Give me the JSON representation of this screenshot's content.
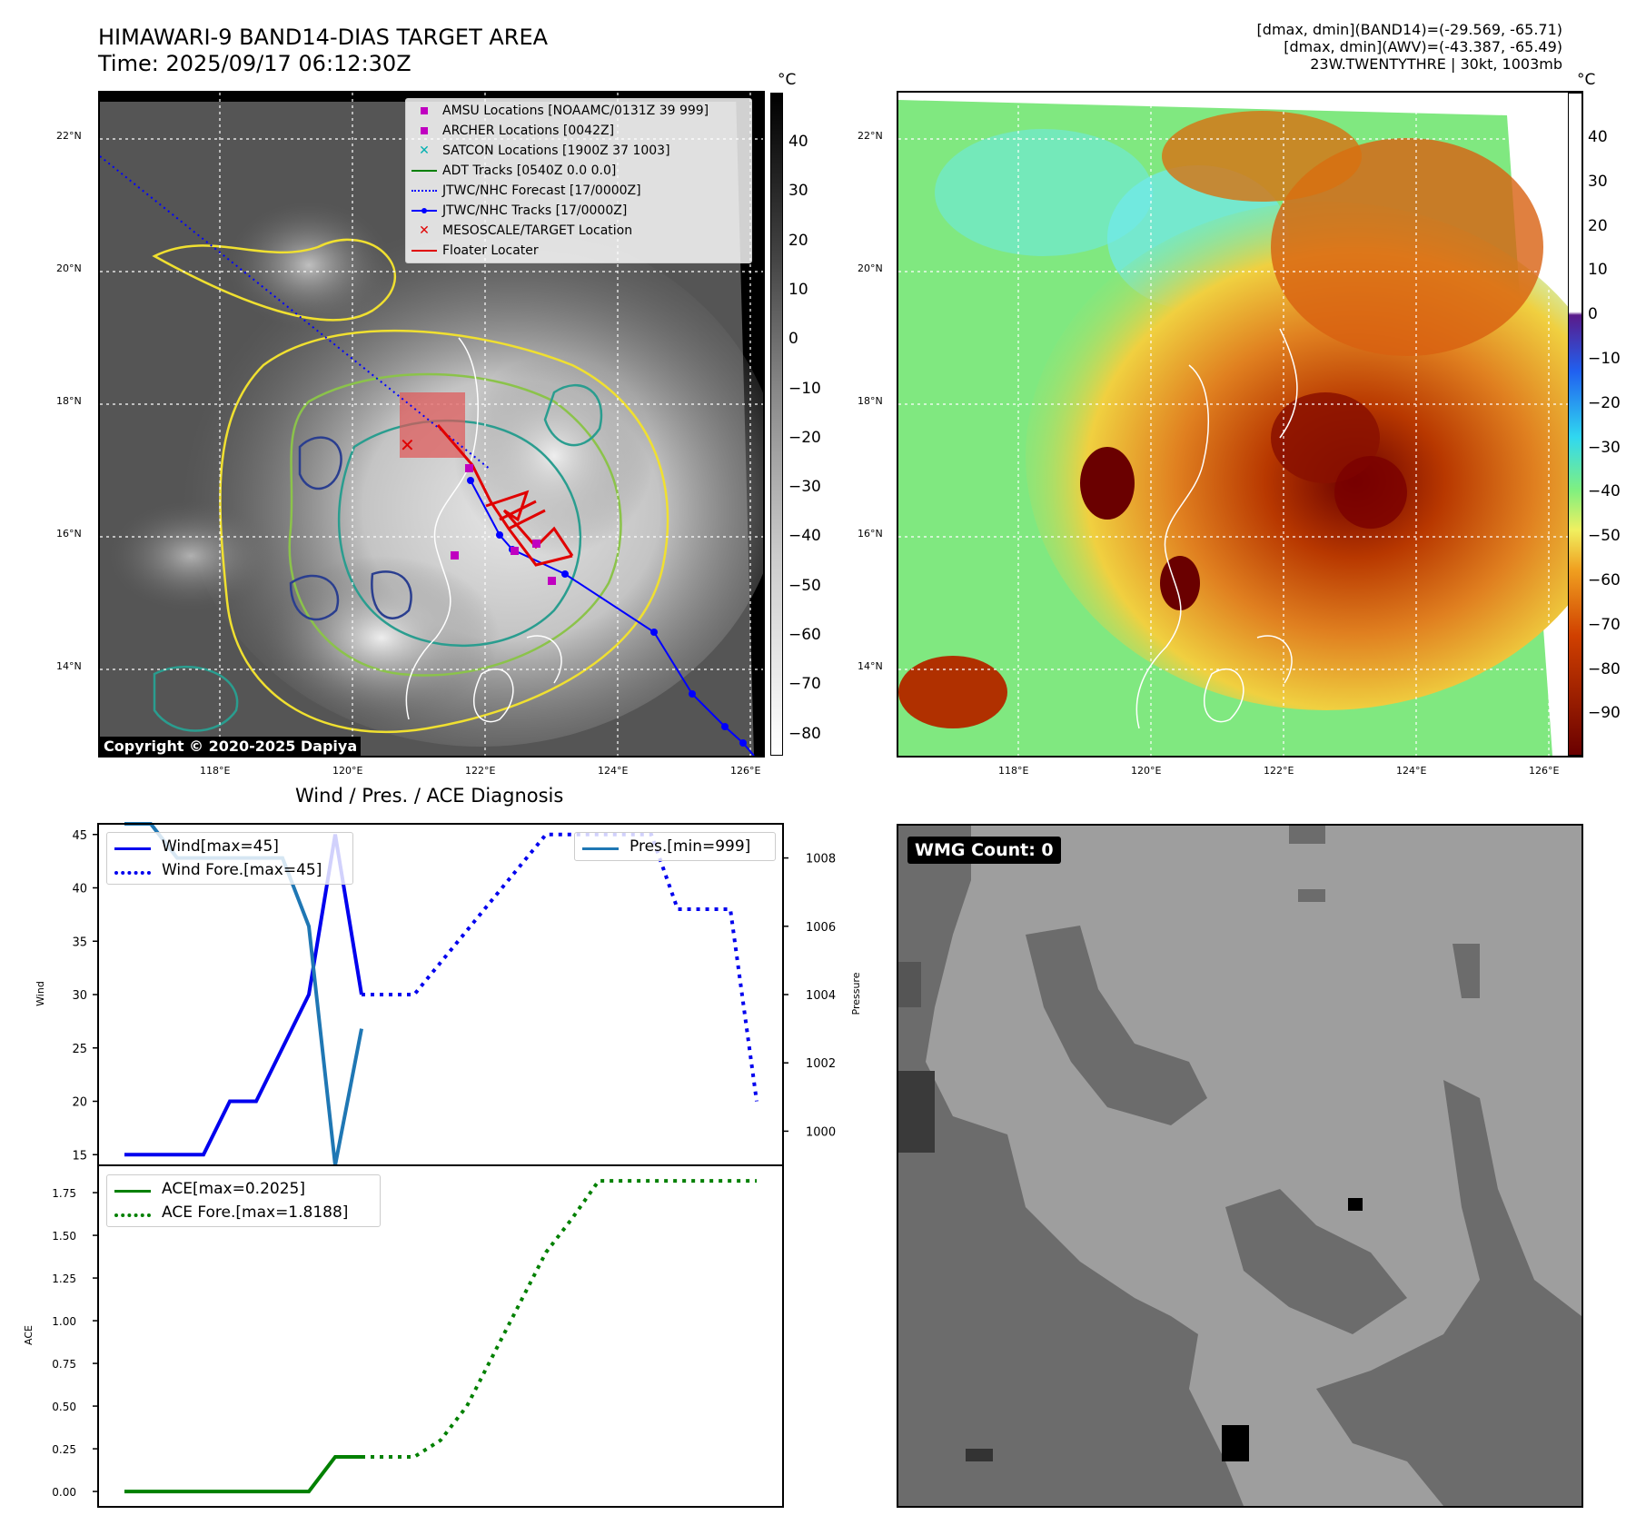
{
  "header": {
    "title_line1": "HIMAWARI-9 BAND14-DIAS TARGET AREA",
    "title_line2": "Time: 2025/09/17 06:12:30Z",
    "right_line1": "[dmax, dmin](BAND14)=(-29.569, -65.71)",
    "right_line2": "[dmax, dmin](AWV)=(-43.387, -65.49)",
    "right_line3": "23W.TWENTYTHRE | 30kt, 1003mb"
  },
  "map": {
    "lat_labels": [
      "22°N",
      "20°N",
      "18°N",
      "16°N",
      "14°N"
    ],
    "lon_labels": [
      "118°E",
      "120°E",
      "122°E",
      "124°E",
      "126°E"
    ],
    "copyright": "Copyright © 2020-2025 Dapiya",
    "unit": "°C",
    "left_cbar_ticks": [
      "40",
      "30",
      "20",
      "10",
      "0",
      "−10",
      "−20",
      "−30",
      "−40",
      "−50",
      "−60",
      "−70",
      "−80"
    ],
    "right_cbar_ticks": [
      "40",
      "30",
      "20",
      "10",
      "0",
      "−10",
      "−20",
      "−30",
      "−40",
      "−50",
      "−60",
      "−70",
      "−80",
      "−90"
    ],
    "legend": [
      {
        "label": "AMSU Locations [NOAAMC/0131Z 39 999]",
        "symbol": "square",
        "color": "#c000c0"
      },
      {
        "label": "ARCHER Locations [0042Z]",
        "symbol": "square",
        "color": "#c000c0"
      },
      {
        "label": "SATCON Locations [1900Z 37 1003]",
        "symbol": "x",
        "color": "#00b0b0"
      },
      {
        "label": "ADT Tracks [0540Z 0.0 0.0]",
        "symbol": "line",
        "color": "#008000"
      },
      {
        "label": "JTWC/NHC Forecast [17/0000Z]",
        "symbol": "dotted",
        "color": "#0000ff"
      },
      {
        "label": "JTWC/NHC Tracks [17/0000Z]",
        "symbol": "line-dot",
        "color": "#0000ff"
      },
      {
        "label": "MESOSCALE/TARGET Location",
        "symbol": "x",
        "color": "#e00000"
      },
      {
        "label": "Floater Locater",
        "symbol": "line",
        "color": "#e00000"
      }
    ]
  },
  "chart_data": [
    {
      "type": "line",
      "title": "Wind / Pres. / ACE Diagnosis",
      "ylabel": "Wind",
      "y2label": "Pressure",
      "ylim": [
        14,
        46
      ],
      "y2lim": [
        999.0,
        1009.0
      ],
      "yticks": [
        15,
        20,
        25,
        30,
        35,
        40,
        45
      ],
      "y2ticks": [
        1000,
        1002,
        1004,
        1006,
        1008
      ],
      "x": [
        0,
        1,
        2,
        3,
        4,
        5,
        6,
        7,
        8,
        9,
        10,
        11,
        12,
        13,
        14,
        15,
        16,
        17,
        18,
        19,
        20,
        21,
        22,
        23,
        24,
        25
      ],
      "series": [
        {
          "name": "Wind[max=45]",
          "axis": "left",
          "style": "solid",
          "color": "#0000ee",
          "x": [
            1,
            2,
            3,
            4,
            5,
            6,
            7,
            8,
            9,
            10
          ],
          "values": [
            15,
            15,
            15,
            15,
            20,
            20,
            25,
            30,
            45,
            30
          ]
        },
        {
          "name": "Wind Fore.[max=45]",
          "axis": "left",
          "style": "dotted",
          "color": "#0000ee",
          "x": [
            10,
            11,
            12,
            13,
            14,
            15,
            16,
            17,
            18,
            19,
            20,
            21,
            22,
            23,
            24,
            25
          ],
          "values": [
            30,
            30,
            30,
            33,
            36,
            39,
            42,
            45,
            45,
            45,
            45,
            45,
            38,
            38,
            38,
            20
          ]
        },
        {
          "name": "Pres.[min=999]",
          "axis": "right",
          "style": "solid",
          "color": "#1f77b4",
          "x": [
            1,
            2,
            3,
            4,
            5,
            6,
            7,
            8,
            9,
            10
          ],
          "values": [
            1009,
            1009,
            1008,
            1008,
            1008,
            1008,
            1008,
            1006,
            999,
            1003
          ]
        }
      ]
    },
    {
      "type": "line",
      "ylabel": "ACE",
      "ylim": [
        -0.09,
        1.91
      ],
      "yticks": [
        "0.00",
        "0.25",
        "0.50",
        "0.75",
        "1.00",
        "1.25",
        "1.50",
        "1.75"
      ],
      "series": [
        {
          "name": "ACE[max=0.2025]",
          "style": "solid",
          "color": "#008000",
          "x": [
            1,
            2,
            3,
            4,
            5,
            6,
            7,
            8,
            9,
            10
          ],
          "values": [
            0,
            0,
            0,
            0,
            0,
            0,
            0,
            0,
            0.2025,
            0.2025
          ]
        },
        {
          "name": "ACE Fore.[max=1.8188]",
          "style": "dotted",
          "color": "#008000",
          "x": [
            10,
            11,
            12,
            13,
            14,
            15,
            16,
            17,
            18,
            19,
            20,
            21,
            22,
            23,
            24,
            25
          ],
          "values": [
            0.2025,
            0.2025,
            0.2025,
            0.3,
            0.5,
            0.8,
            1.1,
            1.4,
            1.6,
            1.8188,
            1.8188,
            1.8188,
            1.8188,
            1.8188,
            1.8188,
            1.8188
          ]
        }
      ]
    }
  ],
  "wmg": {
    "label": "WMG Count: 0"
  }
}
